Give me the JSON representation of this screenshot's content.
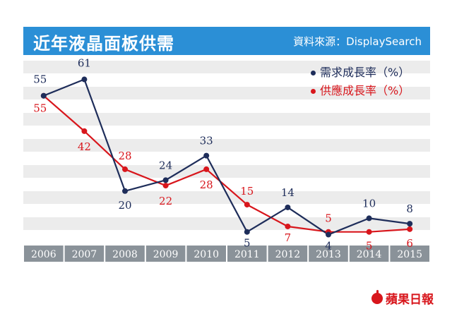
{
  "chart_data": {
    "type": "line",
    "title": "近年液晶面板供需",
    "source": "資料來源：DisplaySearch",
    "categories": [
      "2006",
      "2007",
      "2008",
      "2009",
      "2010",
      "2011",
      "2012",
      "2013",
      "2014",
      "2015"
    ],
    "series": [
      {
        "name": "需求成長率（%）",
        "color": "#1e2d5a",
        "values": [
          55,
          61,
          20,
          24,
          33,
          5,
          14,
          4,
          10,
          8
        ]
      },
      {
        "name": "供應成長率（%）",
        "color": "#d8161c",
        "values": [
          55,
          42,
          28,
          22,
          28,
          15,
          7,
          5,
          5,
          6
        ]
      }
    ],
    "ylim": [
      0,
      68
    ],
    "xlabel": "",
    "ylabel": "",
    "grid": "horizontal bands",
    "legend": "top-right"
  },
  "brand": "蘋果日報",
  "colors": {
    "header_bg": "#2b8fd6",
    "band": "#ececec",
    "axis_bar": "#8a9299",
    "demand": "#1e2d5a",
    "supply": "#d8161c"
  }
}
